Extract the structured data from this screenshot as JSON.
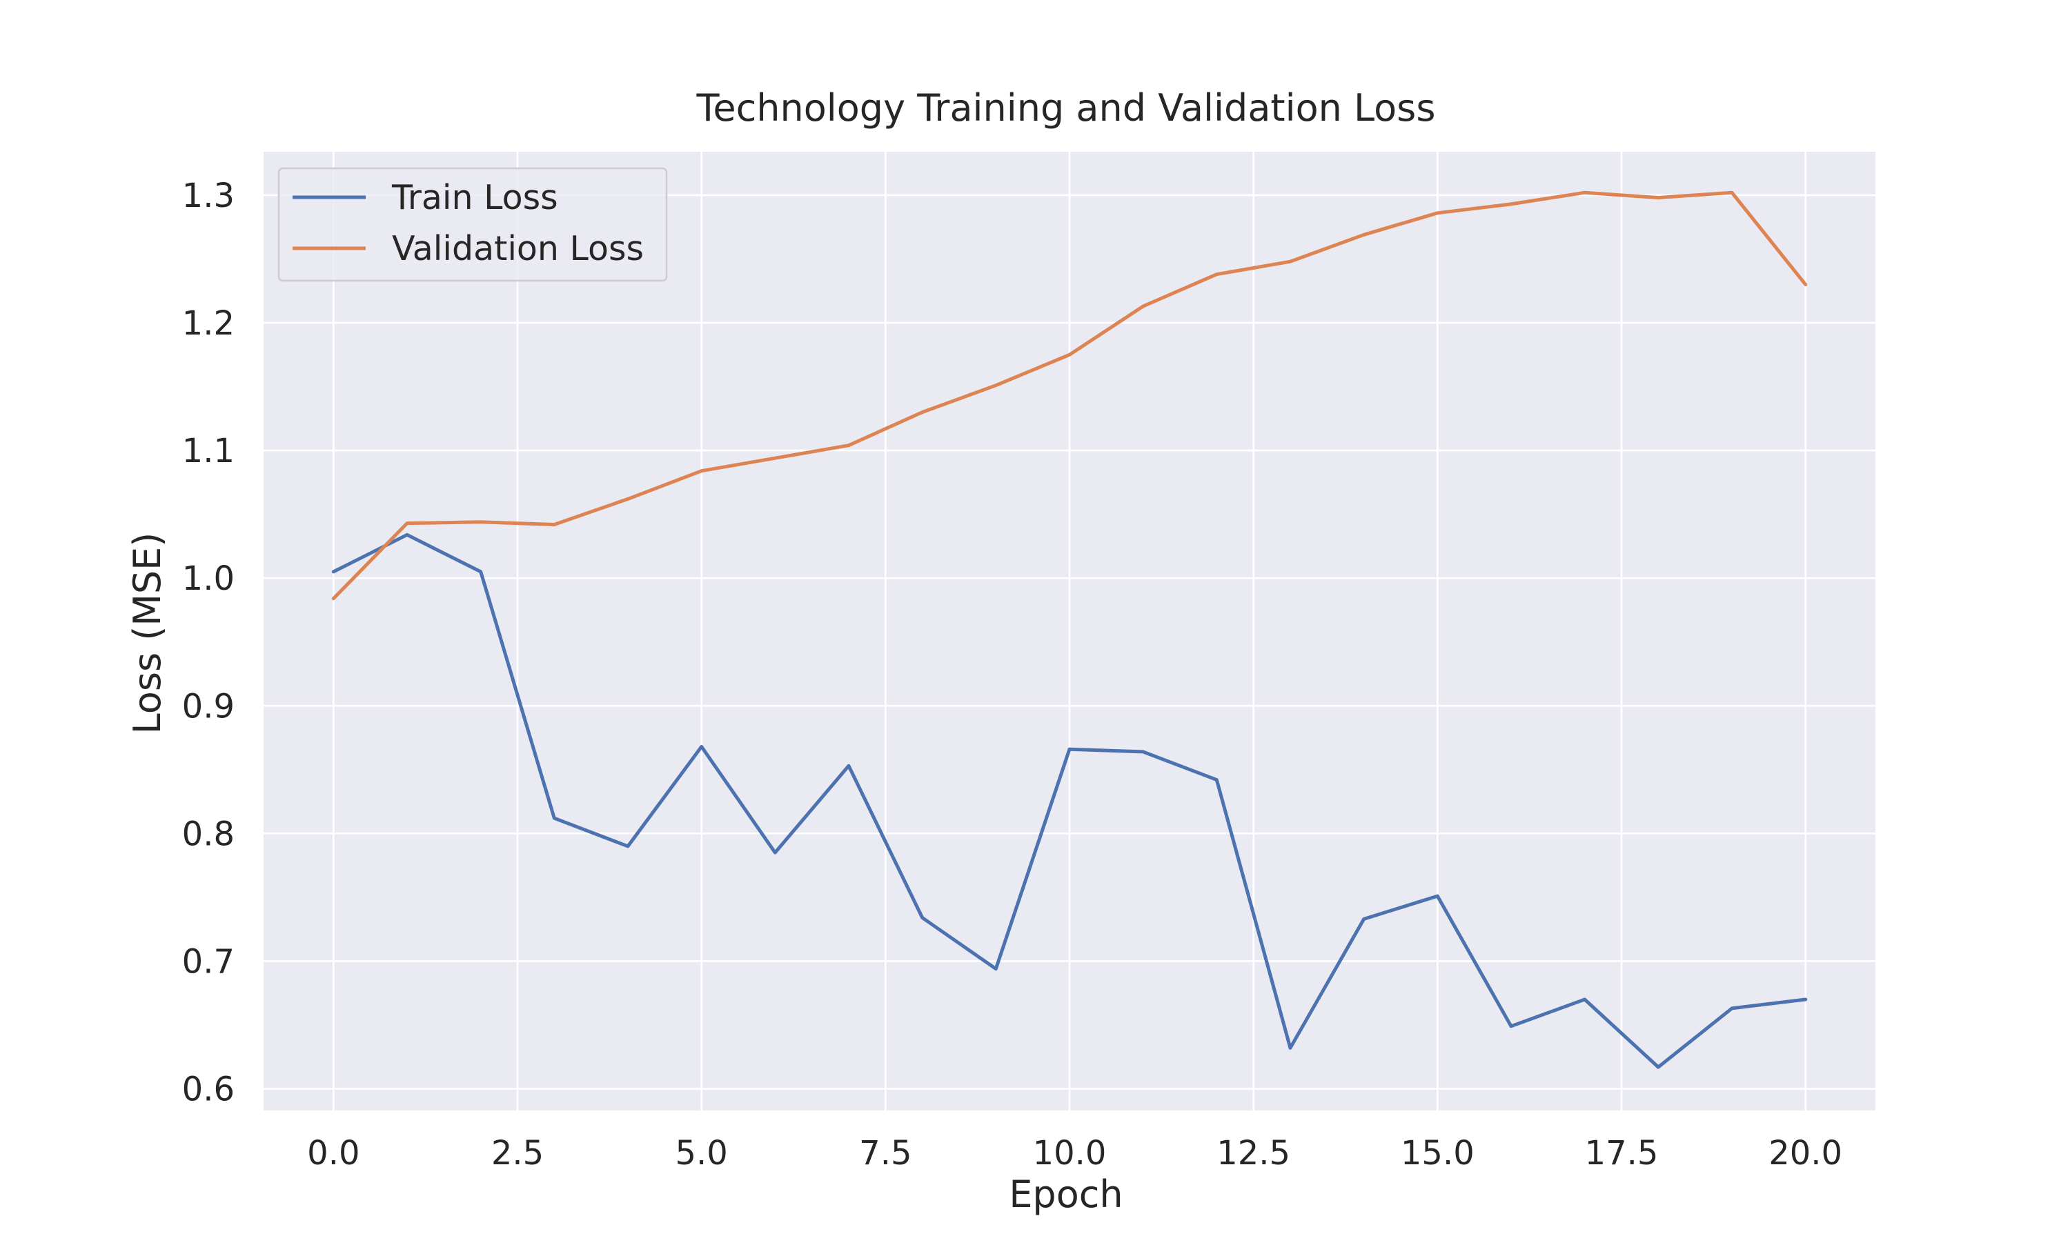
{
  "chart_data": {
    "type": "line",
    "title": "Technology Training and Validation Loss",
    "xlabel": "Epoch",
    "ylabel": "Loss (MSE)",
    "xlim": [
      -0.95,
      20.95
    ],
    "ylim": [
      0.583,
      1.334
    ],
    "x_ticks": [
      0.0,
      2.5,
      5.0,
      7.5,
      10.0,
      12.5,
      15.0,
      17.5,
      20.0
    ],
    "x_tick_labels": [
      "0.0",
      "2.5",
      "5.0",
      "7.5",
      "10.0",
      "12.5",
      "15.0",
      "17.5",
      "20.0"
    ],
    "y_ticks": [
      0.6,
      0.7,
      0.8,
      0.9,
      1.0,
      1.1,
      1.2,
      1.3
    ],
    "y_tick_labels": [
      "0.6",
      "0.7",
      "0.8",
      "0.9",
      "1.0",
      "1.1",
      "1.2",
      "1.3"
    ],
    "grid": true,
    "legend_position": "top-left",
    "x": [
      0,
      1,
      2,
      3,
      4,
      5,
      6,
      7,
      8,
      9,
      10,
      11,
      12,
      13,
      14,
      15,
      16,
      17,
      18,
      19,
      20
    ],
    "series": [
      {
        "name": "Train Loss",
        "color": "#4c72b0",
        "values": [
          1.005,
          1.034,
          1.005,
          0.812,
          0.79,
          0.868,
          0.785,
          0.853,
          0.734,
          0.694,
          0.866,
          0.864,
          0.842,
          0.632,
          0.733,
          0.751,
          0.649,
          0.67,
          0.617,
          0.663,
          0.67
        ]
      },
      {
        "name": "Validation Loss",
        "color": "#dd8452",
        "values": [
          0.984,
          1.043,
          1.044,
          1.042,
          1.062,
          1.084,
          1.094,
          1.104,
          1.13,
          1.151,
          1.175,
          1.213,
          1.238,
          1.248,
          1.269,
          1.286,
          1.293,
          1.302,
          1.298,
          1.302,
          1.23
        ]
      }
    ]
  }
}
